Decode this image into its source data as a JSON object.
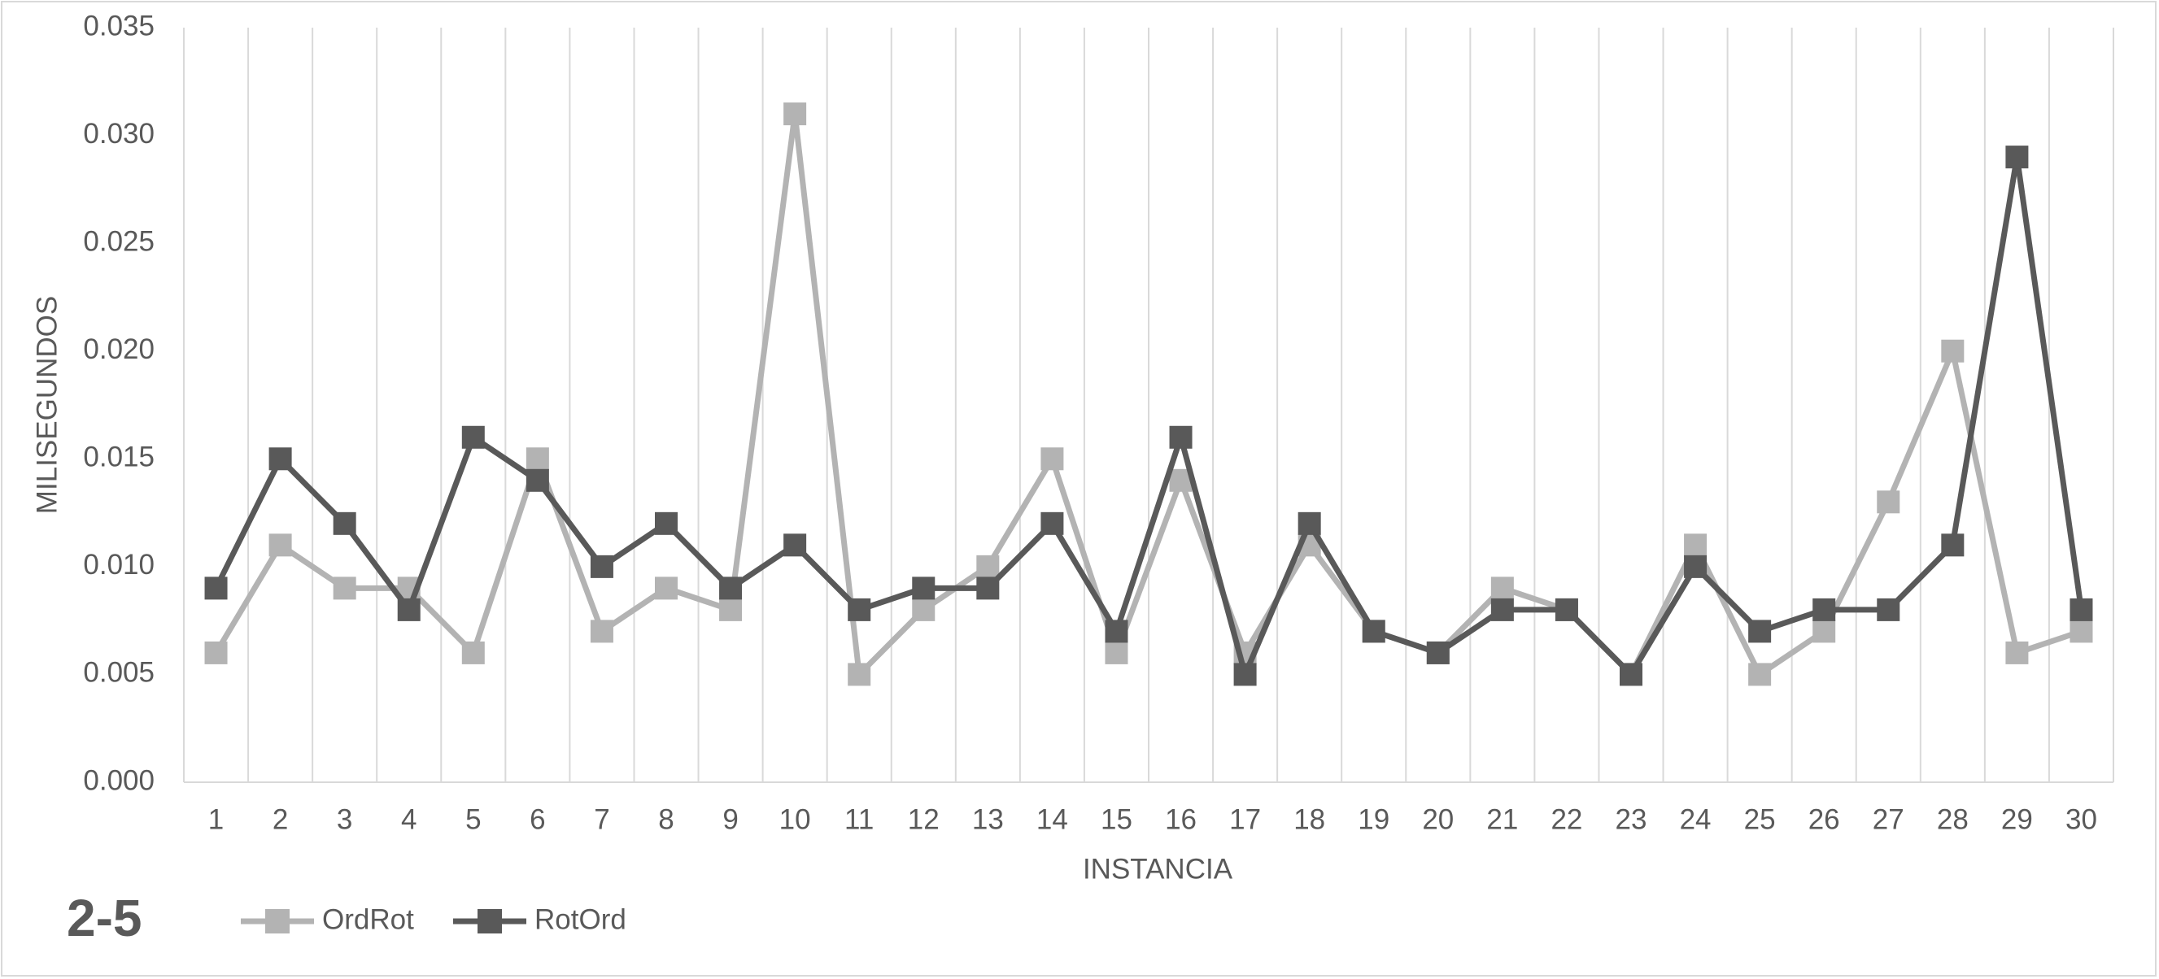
{
  "chart_data": {
    "type": "line",
    "title": "",
    "xlabel": "INSTANCIA",
    "ylabel": "MILISEGUNDOS",
    "corner_label": "2-5",
    "categories": [
      "1",
      "2",
      "3",
      "4",
      "5",
      "6",
      "7",
      "8",
      "9",
      "10",
      "11",
      "12",
      "13",
      "14",
      "15",
      "16",
      "17",
      "18",
      "19",
      "20",
      "21",
      "22",
      "23",
      "24",
      "25",
      "26",
      "27",
      "28",
      "29",
      "30"
    ],
    "y_ticks": [
      "0.000",
      "0.005",
      "0.010",
      "0.015",
      "0.020",
      "0.025",
      "0.030",
      "0.035"
    ],
    "ylim": [
      0,
      0.035
    ],
    "grid": "vertical",
    "legend_position": "bottom-left",
    "series": [
      {
        "name": "OrdRot",
        "color": "#b3b3b3",
        "marker": "square",
        "values": [
          0.006,
          0.011,
          0.009,
          0.009,
          0.006,
          0.015,
          0.007,
          0.009,
          0.008,
          0.031,
          0.005,
          0.008,
          0.01,
          0.015,
          0.006,
          0.014,
          0.006,
          0.011,
          0.007,
          0.006,
          0.009,
          0.008,
          0.005,
          0.011,
          0.005,
          0.007,
          0.013,
          0.02,
          0.006,
          0.007
        ]
      },
      {
        "name": "RotOrd",
        "color": "#595959",
        "marker": "square",
        "values": [
          0.009,
          0.015,
          0.012,
          0.008,
          0.016,
          0.014,
          0.01,
          0.012,
          0.009,
          0.011,
          0.008,
          0.009,
          0.009,
          0.012,
          0.007,
          0.016,
          0.005,
          0.012,
          0.007,
          0.006,
          0.008,
          0.008,
          0.005,
          0.01,
          0.007,
          0.008,
          0.008,
          0.011,
          0.029,
          0.008
        ]
      }
    ]
  }
}
